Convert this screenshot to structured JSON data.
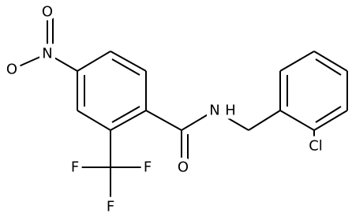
{
  "atoms": [
    {
      "label": "O"
    },
    {
      "label": "N"
    },
    {
      "label": "O"
    },
    {
      "label": "O"
    },
    {
      "label": "N"
    },
    {
      "label": "H"
    },
    {
      "label": "F"
    },
    {
      "label": "F"
    },
    {
      "label": "F"
    },
    {
      "label": "Cl"
    }
  ]
}
